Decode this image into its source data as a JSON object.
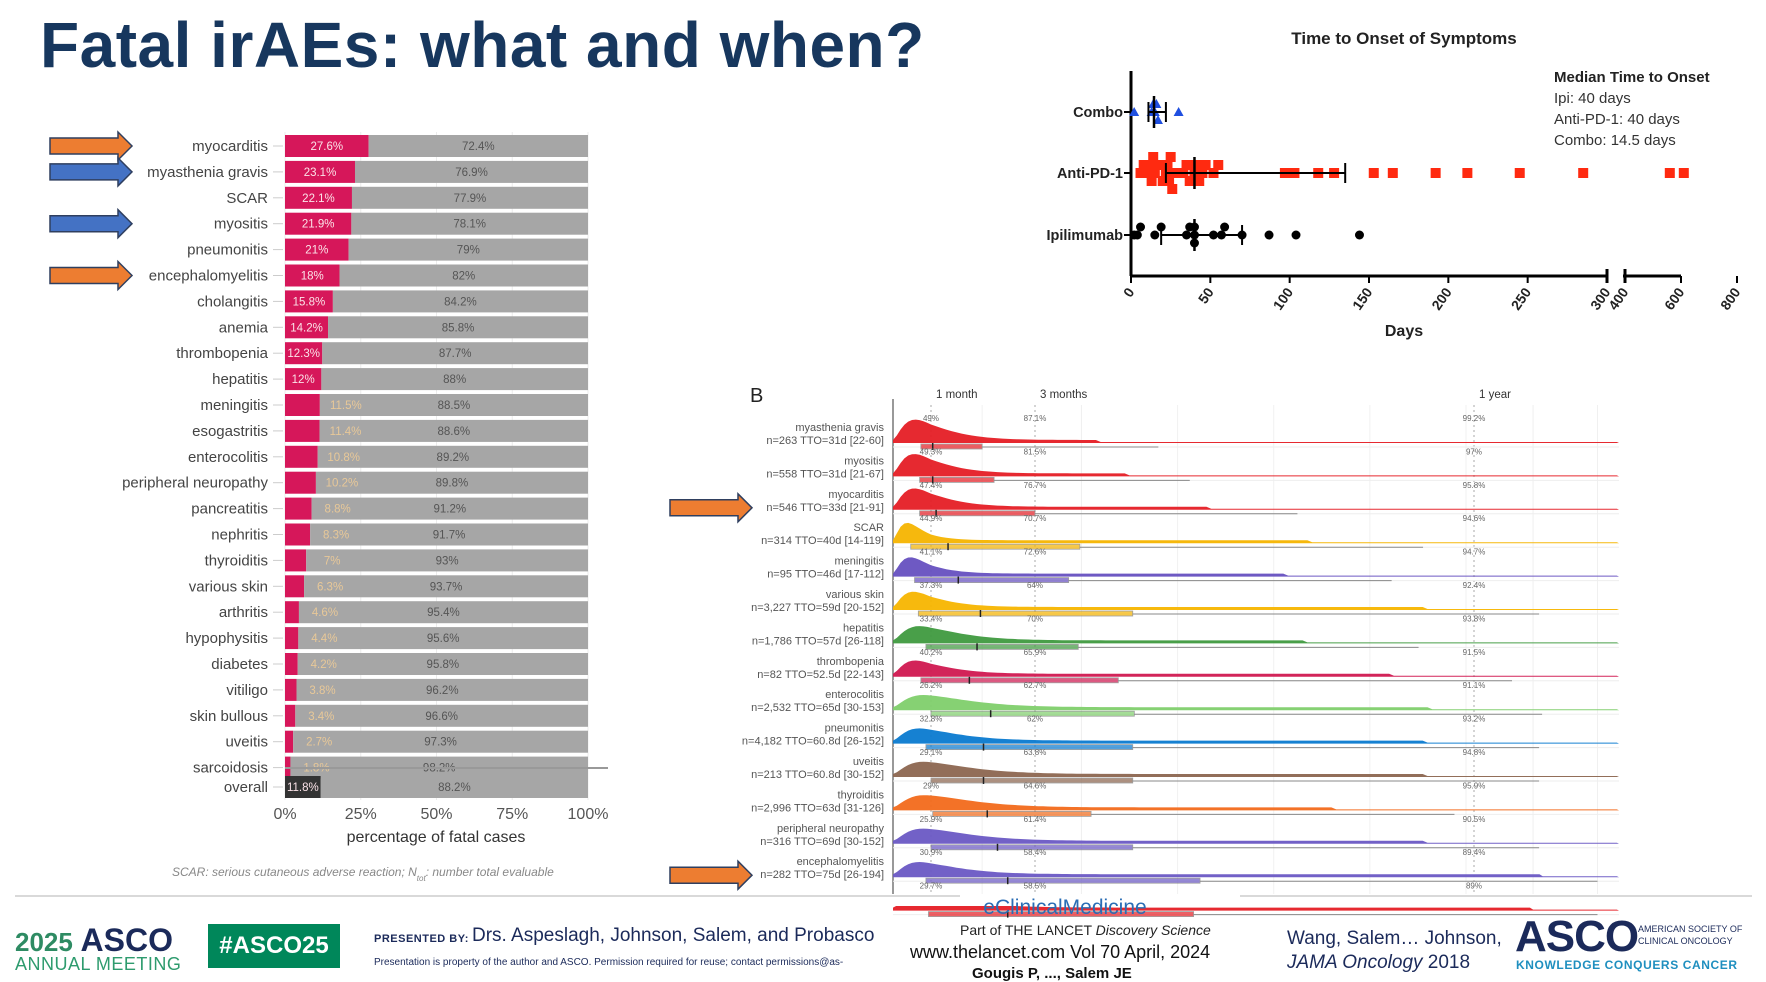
{
  "title": "Fatal irAEs: what and when?",
  "colors": {
    "title": "#17375e",
    "fatal": "#d6175a",
    "nonfatal": "#a6a6a6",
    "arrow_orange": "#ed7d31",
    "arrow_blue": "#4472c4",
    "asco_green": "#00875a"
  },
  "arrows_left": [
    {
      "row": "myocarditis",
      "color": "orange"
    },
    {
      "row": "myasthenia gravis",
      "color": "blue"
    },
    {
      "row": "myositis",
      "color": "blue"
    },
    {
      "row": "encephalomyelitis",
      "color": "orange"
    }
  ],
  "arrows_ridge": [
    {
      "row": "myocarditis",
      "color": "orange"
    },
    {
      "row": "encephalomyelitis",
      "color": "orange"
    }
  ],
  "chart_data": [
    {
      "type": "bar",
      "stacked": true,
      "orientation": "horizontal",
      "categories": [
        "myocarditis",
        "myasthenia gravis",
        "SCAR",
        "myositis",
        "pneumonitis",
        "encephalomyelitis",
        "cholangitis",
        "anemia",
        "thrombopenia",
        "hepatitis",
        "meningitis",
        "esogastritis",
        "enterocolitis",
        "peripheral neuropathy",
        "pancreatitis",
        "nephritis",
        "thyroiditis",
        "various skin",
        "arthritis",
        "hypophysitis",
        "diabetes",
        "vitiligo",
        "skin bullous",
        "uveitis",
        "sarcoidosis"
      ],
      "series": [
        {
          "values": [
            27.6,
            23.1,
            22.1,
            21.9,
            21,
            18,
            15.8,
            14.2,
            12.3,
            12,
            11.5,
            11.4,
            10.8,
            10.2,
            8.8,
            8.3,
            7,
            6.3,
            4.6,
            4.4,
            4.2,
            3.8,
            3.4,
            2.7,
            1.8
          ],
          "labels": [
            "27.6%",
            "23.1%",
            "22.1%",
            "21.9%",
            "21%",
            "18%",
            "15.8%",
            "14.2%",
            "12.3%",
            "12%",
            "11.5%",
            "11.4%",
            "10.8%",
            "10.2%",
            "8.8%",
            "8.3%",
            "7%",
            "6.3%",
            "4.6%",
            "4.4%",
            "4.2%",
            "3.8%",
            "3.4%",
            "2.7%",
            "1.8%"
          ]
        },
        {
          "values": [
            72.4,
            76.9,
            77.9,
            78.1,
            79,
            82,
            84.2,
            85.8,
            87.7,
            88,
            88.5,
            88.6,
            89.2,
            89.8,
            91.2,
            91.7,
            93,
            93.7,
            95.4,
            95.6,
            95.8,
            96.2,
            96.6,
            97.3,
            98.2
          ],
          "labels": [
            "72.4%",
            "76.9%",
            "77.9%",
            "78.1%",
            "79%",
            "82%",
            "84.2%",
            "85.8%",
            "87.7%",
            "88%",
            "88.5%",
            "88.6%",
            "89.2%",
            "89.8%",
            "91.2%",
            "91.7%",
            "93%",
            "93.7%",
            "95.4%",
            "95.6%",
            "95.8%",
            "96.2%",
            "96.6%",
            "97.3%",
            "98.2%"
          ]
        }
      ],
      "overall": {
        "label": "overall",
        "fatal": 11.8,
        "fatal_label": "11.8%",
        "nonfatal": 88.2,
        "nonfatal_label": "88.2%"
      },
      "xlim": [
        0,
        100
      ],
      "xticks": [
        "0%",
        "25%",
        "50%",
        "75%",
        "100%"
      ],
      "xlabel": "percentage of fatal cases",
      "footnote": "SCAR: serious cutaneous adverse reaction; N",
      "footnote_sub": "tot",
      "footnote_end": ": number total evaluable"
    },
    {
      "type": "scatter",
      "title": "Time to Onset of Symptoms",
      "xlabel": "Days",
      "xticks": [
        "0",
        "50",
        "100",
        "150",
        "200",
        "250",
        "300",
        "400",
        "600",
        "800"
      ],
      "axis_break": [
        300,
        400
      ],
      "categories": [
        "Combo",
        "Anti-PD-1",
        "Ipilimumab"
      ],
      "series": [
        {
          "name": "Combo",
          "marker": "triangle",
          "color": "#1f4fe0",
          "values": [
            2,
            13,
            14,
            15,
            16,
            17,
            30
          ],
          "median": 14.5,
          "whisker": [
            11,
            22
          ]
        },
        {
          "name": "Anti-PD-1",
          "marker": "square",
          "color": "#ff2a10",
          "values": [
            6,
            8,
            10,
            12,
            13,
            14,
            15,
            18,
            20,
            22,
            23,
            24,
            25,
            26,
            27,
            33,
            35,
            37,
            40,
            41,
            43,
            45,
            47,
            52,
            55,
            97,
            103,
            118,
            128,
            153,
            165,
            192,
            212,
            245,
            285,
            560,
            610
          ],
          "median": 40,
          "whisker": [
            22,
            135
          ]
        },
        {
          "name": "Ipilimumab",
          "marker": "circle",
          "color": "#000000",
          "values": [
            2,
            4,
            6,
            15,
            19,
            35,
            37,
            40,
            40,
            40,
            52,
            57,
            59,
            70,
            87,
            104,
            144
          ],
          "median": 40,
          "whisker": [
            19,
            70
          ]
        }
      ],
      "legend": {
        "title": "Median Time to Onset",
        "lines": [
          "Ipi: 40 days",
          "Anti-PD-1: 40 days",
          "Combo: 14.5 days"
        ]
      }
    },
    {
      "type": "ridgeline",
      "panel_label": "B",
      "xticks": [
        "1 month",
        "3 months",
        "1 year"
      ],
      "rows": [
        {
          "name": "myasthenia gravis",
          "stats": "n=263 TTO=31d [22-60]",
          "tto": 31,
          "q1": 22,
          "q3": 60,
          "color": "#e51e25",
          "pct": [
            "49%",
            "87.1%",
            "99.2%"
          ]
        },
        {
          "name": "myositis",
          "stats": "n=558 TTO=31d [21-67]",
          "tto": 31,
          "q1": 21,
          "q3": 67,
          "color": "#e51e25",
          "pct": [
            "49.3%",
            "81.5%",
            "97%"
          ]
        },
        {
          "name": "myocarditis",
          "stats": "n=546 TTO=33d [21-91]",
          "tto": 33,
          "q1": 21,
          "q3": 91,
          "color": "#e51e25",
          "pct": [
            "47.4%",
            "76.7%",
            "95.8%"
          ]
        },
        {
          "name": "SCAR",
          "stats": "n=314 TTO=40d [14-119]",
          "tto": 40,
          "q1": 14,
          "q3": 119,
          "color": "#f5b400",
          "pct": [
            "44.9%",
            "70.7%",
            "94.6%"
          ]
        },
        {
          "name": "meningitis",
          "stats": "n=95 TTO=46d [17-112]",
          "tto": 46,
          "q1": 17,
          "q3": 112,
          "color": "#6650c0",
          "pct": [
            "41.1%",
            "72.6%",
            "94.7%"
          ]
        },
        {
          "name": "various skin",
          "stats": "n=3,227 TTO=59d [20-152]",
          "tto": 59,
          "q1": 20,
          "q3": 152,
          "color": "#f7b500",
          "pct": [
            "37.3%",
            "64%",
            "92.4%"
          ]
        },
        {
          "name": "hepatitis",
          "stats": "n=1,786 TTO=57d [26-118]",
          "tto": 57,
          "q1": 26,
          "q3": 118,
          "color": "#3f9a3f",
          "pct": [
            "33.4%",
            "70%",
            "93.8%"
          ]
        },
        {
          "name": "thrombopenia",
          "stats": "n=82 TTO=52.5d [22-143]",
          "tto": 52.5,
          "q1": 22,
          "q3": 143,
          "color": "#d01850",
          "pct": [
            "40.2%",
            "65.9%",
            "91.5%"
          ]
        },
        {
          "name": "enterocolitis",
          "stats": "n=2,532 TTO=65d [30-153]",
          "tto": 65,
          "q1": 30,
          "q3": 153,
          "color": "#7fcf6c",
          "pct": [
            "26.2%",
            "62.7%",
            "91.1%"
          ]
        },
        {
          "name": "pneumonitis",
          "stats": "n=4,182 TTO=60.8d [26-152]",
          "tto": 60.8,
          "q1": 26,
          "q3": 152,
          "color": "#0a7ad0",
          "pct": [
            "32.8%",
            "62%",
            "93.2%"
          ]
        },
        {
          "name": "uveitis",
          "stats": "n=213 TTO=60.8d [30-152]",
          "tto": 60.8,
          "q1": 30,
          "q3": 152,
          "color": "#8c6650",
          "pct": [
            "29.1%",
            "63.8%",
            "94.8%"
          ]
        },
        {
          "name": "thyroiditis",
          "stats": "n=2,996 TTO=63d [31-126]",
          "tto": 63,
          "q1": 31,
          "q3": 126,
          "color": "#f26a1b",
          "pct": [
            "29%",
            "64.6%",
            "95.9%"
          ]
        },
        {
          "name": "peripheral neuropathy",
          "stats": "n=316 TTO=69d [30-152]",
          "tto": 69,
          "q1": 30,
          "q3": 152,
          "color": "#6a58c4",
          "pct": [
            "25.9%",
            "61.4%",
            "90.5%"
          ]
        },
        {
          "name": "encephalomyelitis",
          "stats": "n=282 TTO=75d [26-194]",
          "tto": 75,
          "q1": 26,
          "q3": 194,
          "color": "#6a58c4",
          "pct": [
            "30.9%",
            "58.4%",
            "89.4%"
          ]
        },
        {
          "name": "",
          "stats": "",
          "tto": 75,
          "q1": 28,
          "q3": 190,
          "color": "#e51e25",
          "pct": [
            "29.7%",
            "58.5%",
            "89%"
          ]
        }
      ]
    }
  ],
  "footer": {
    "asco_year": "2025",
    "asco_word": "ASCO",
    "annual_meeting": "ANNUAL MEETING",
    "hashtag": "#ASCO25",
    "presented_by_label": "PRESENTED BY:",
    "presenters": "Drs. Aspeslagh, Johnson, Salem, and Probasco",
    "permission": "Presentation is property of the author and ASCO. Permission required for reuse; contact permissions@as-",
    "ecm_name": "eClinicalMedicine",
    "ecm_part": "Part of THE LANCET ",
    "ecm_part_italic": "Discovery Science",
    "ecm_vol": "www.thelancet.com Vol 70 April, 2024",
    "ecm_authors": "Gougis P, ..., Salem JE",
    "wang_line1": "Wang, Salem… Johnson,",
    "wang_journal": "JAMA Oncology",
    "wang_year": " 2018",
    "asco_logo": "ASCO",
    "asco_society": "AMERICAN SOCIETY OF CLINICAL ONCOLOGY",
    "asco_tagline": "KNOWLEDGE CONQUERS CANCER"
  }
}
